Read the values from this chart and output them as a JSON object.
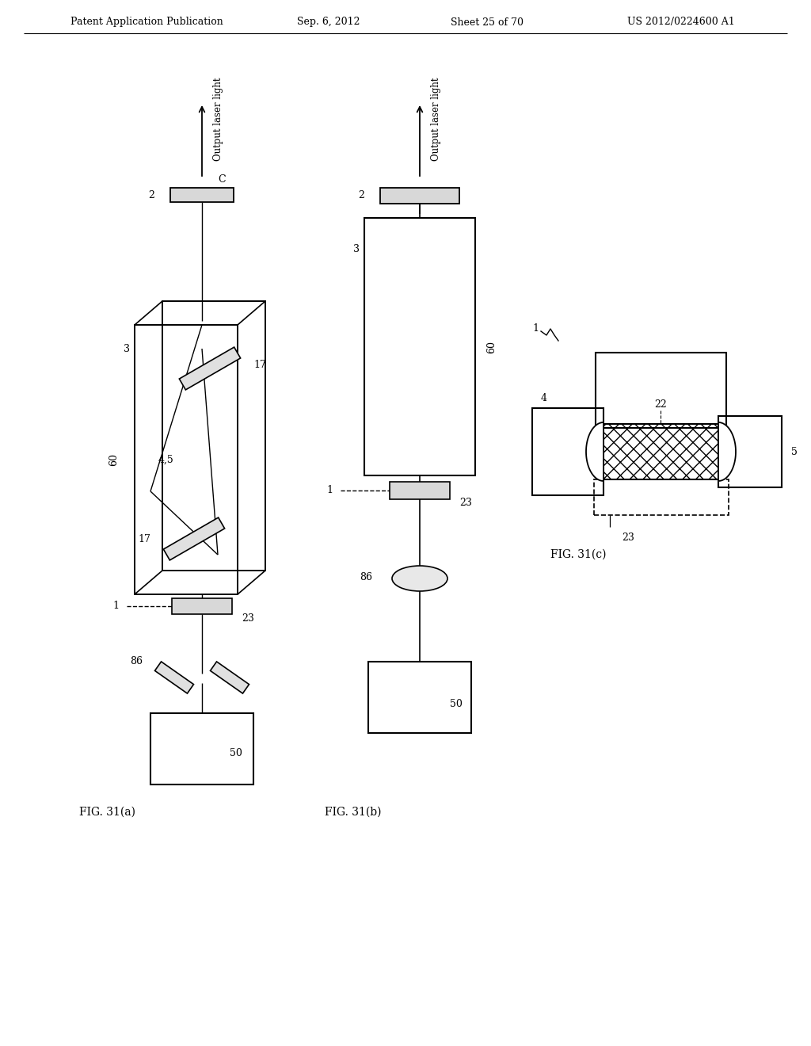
{
  "header_left": "Patent Application Publication",
  "header_center": "Sep. 6, 2012",
  "header_right1": "Sheet 25 of 70",
  "header_right2": "US 2012/0224600 A1",
  "fig_a_label": "FIG. 31(a)",
  "fig_b_label": "FIG. 31(b)",
  "fig_c_label": "FIG. 31(c)",
  "output_text": "Output laser light",
  "bg_color": "#ffffff"
}
